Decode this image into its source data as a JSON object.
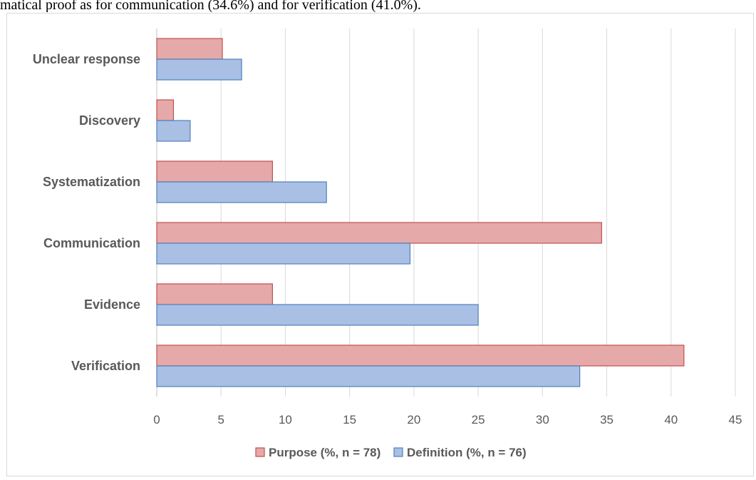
{
  "document": {
    "caption": "matical proof as for communication (34.6%) and for verification (41.0%)."
  },
  "chart_data": {
    "type": "bar",
    "orientation": "horizontal",
    "categories": [
      "Verification",
      "Evidence",
      "Communication",
      "Systematization",
      "Discovery",
      "Unclear response"
    ],
    "series": [
      {
        "name": "Purpose (%, n = 78)",
        "values": [
          41.0,
          9.0,
          34.6,
          9.0,
          1.3,
          5.1
        ],
        "color": "#e6a9a9",
        "stroke": "#c0504d"
      },
      {
        "name": "Definition (%, n = 76)",
        "values": [
          32.9,
          25.0,
          19.7,
          13.2,
          2.6,
          6.6
        ],
        "color": "#a9bfe3",
        "stroke": "#4f81bd"
      }
    ],
    "xlim": [
      0,
      45
    ],
    "xticks": [
      0,
      5,
      10,
      15,
      20,
      25,
      30,
      35,
      40,
      45
    ],
    "title": "",
    "xlabel": "",
    "ylabel": "",
    "grid": true,
    "legend": "bottom"
  }
}
